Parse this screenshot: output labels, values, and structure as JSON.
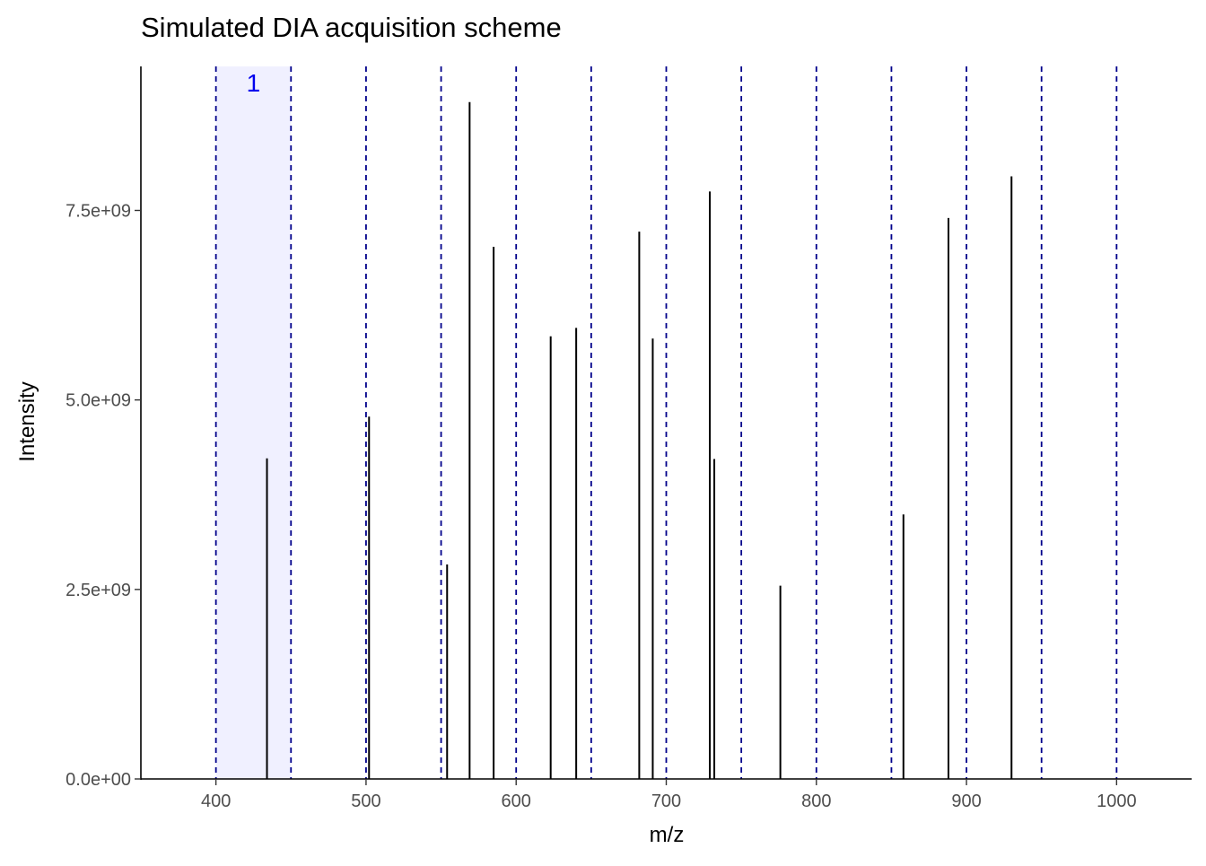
{
  "chart_data": {
    "type": "bar",
    "title": "Simulated DIA acquisition scheme",
    "xlabel": "m/z",
    "ylabel": "Intensity",
    "xlim": [
      350,
      1050
    ],
    "ylim": [
      0,
      9400000000
    ],
    "x_ticks": [
      400,
      500,
      600,
      700,
      800,
      900,
      1000
    ],
    "x_tick_labels": [
      "400",
      "500",
      "600",
      "700",
      "800",
      "900",
      "1000"
    ],
    "y_ticks": [
      0,
      2500000000,
      5000000000,
      7500000000
    ],
    "y_tick_labels": [
      "0.0e+00",
      "2.5e+09",
      "5.0e+09",
      "7.5e+09"
    ],
    "grid": false,
    "highlight_window": {
      "range": [
        400,
        450
      ],
      "label": "1",
      "fill_color": "#f0f0ff",
      "label_color": "#0000ee"
    },
    "window_boundaries": [
      400,
      450,
      500,
      550,
      600,
      650,
      700,
      750,
      800,
      850,
      900,
      950,
      1000
    ],
    "boundary_color": "#00008b",
    "peak_color": "#000000",
    "peaks": [
      {
        "mz": 434,
        "intensity": 4230000000
      },
      {
        "mz": 502,
        "intensity": 4780000000
      },
      {
        "mz": 554,
        "intensity": 2830000000
      },
      {
        "mz": 569,
        "intensity": 8930000000
      },
      {
        "mz": 585,
        "intensity": 7020000000
      },
      {
        "mz": 623,
        "intensity": 5840000000
      },
      {
        "mz": 640,
        "intensity": 5950000000
      },
      {
        "mz": 682,
        "intensity": 7220000000
      },
      {
        "mz": 691,
        "intensity": 5810000000
      },
      {
        "mz": 729,
        "intensity": 7750000000
      },
      {
        "mz": 732,
        "intensity": 4220000000
      },
      {
        "mz": 776,
        "intensity": 2550000000
      },
      {
        "mz": 858,
        "intensity": 3490000000
      },
      {
        "mz": 888,
        "intensity": 7400000000
      },
      {
        "mz": 930,
        "intensity": 7950000000
      }
    ]
  }
}
